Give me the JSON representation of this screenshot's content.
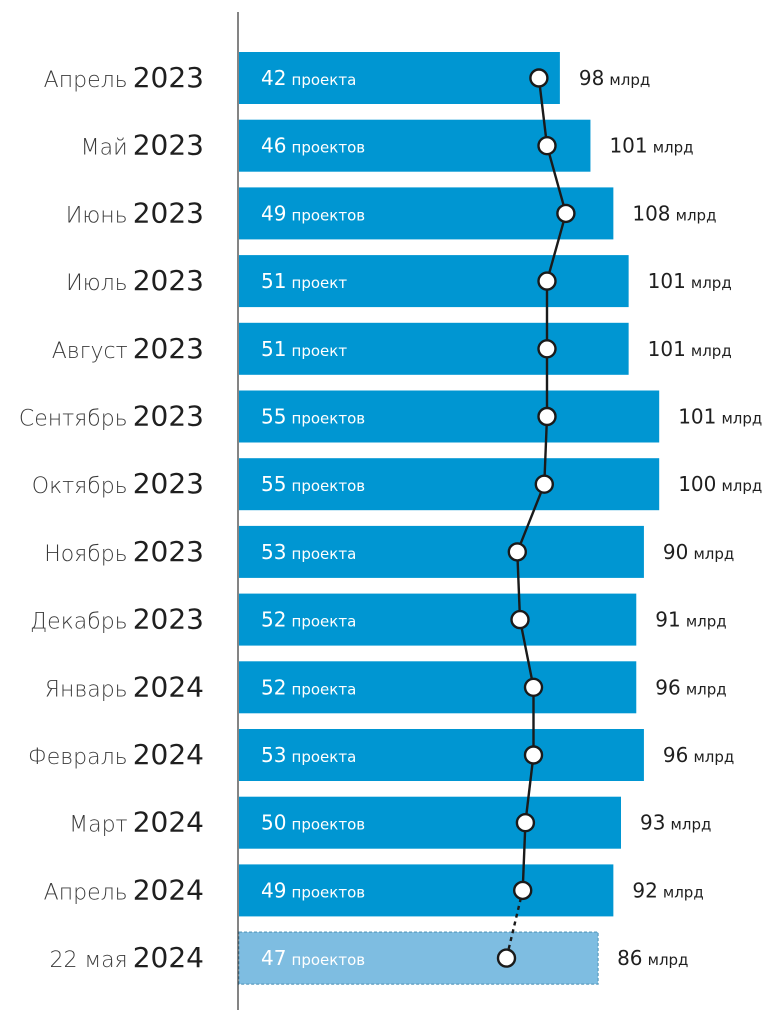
{
  "chart_data": {
    "type": "bar",
    "orientation": "horizontal",
    "categories": [
      {
        "month": "Апрель",
        "year": "2023"
      },
      {
        "month": "Май",
        "year": "2023"
      },
      {
        "month": "Июнь",
        "year": "2023"
      },
      {
        "month": "Июль",
        "year": "2023"
      },
      {
        "month": "Август",
        "year": "2023"
      },
      {
        "month": "Сентябрь",
        "year": "2023"
      },
      {
        "month": "Октябрь",
        "year": "2023"
      },
      {
        "month": "Ноябрь",
        "year": "2023"
      },
      {
        "month": "Декабрь",
        "year": "2023"
      },
      {
        "month": "Январь",
        "year": "2024"
      },
      {
        "month": "Февраль",
        "year": "2024"
      },
      {
        "month": "Март",
        "year": "2024"
      },
      {
        "month": "Апрель",
        "year": "2024"
      },
      {
        "month": "22 мая",
        "year": "2024"
      }
    ],
    "series": [
      {
        "kind": "bar",
        "values": [
          42,
          46,
          49,
          51,
          51,
          55,
          55,
          53,
          52,
          52,
          53,
          50,
          49,
          47
        ],
        "labels": [
          "проекта",
          "проектов",
          "проектов",
          "проект",
          "проект",
          "проектов",
          "проектов",
          "проекта",
          "проекта",
          "проекта",
          "проекта",
          "проектов",
          "проектов",
          "проектов"
        ],
        "xlim": [
          0,
          58
        ]
      },
      {
        "kind": "line",
        "values": [
          98,
          101,
          108,
          101,
          101,
          101,
          100,
          90,
          91,
          96,
          96,
          93,
          92,
          86
        ],
        "unit": "млрд",
        "xlim": [
          60,
          125
        ]
      }
    ],
    "last_point_provisional": true,
    "colors": {
      "bar": "#0096d2",
      "bar_provisional": "#7ebde1",
      "bar_provisional_border": "#5a9cbf",
      "line": "#1a1a1a",
      "marker_fill": "#ffffff",
      "axis": "#333333"
    }
  }
}
